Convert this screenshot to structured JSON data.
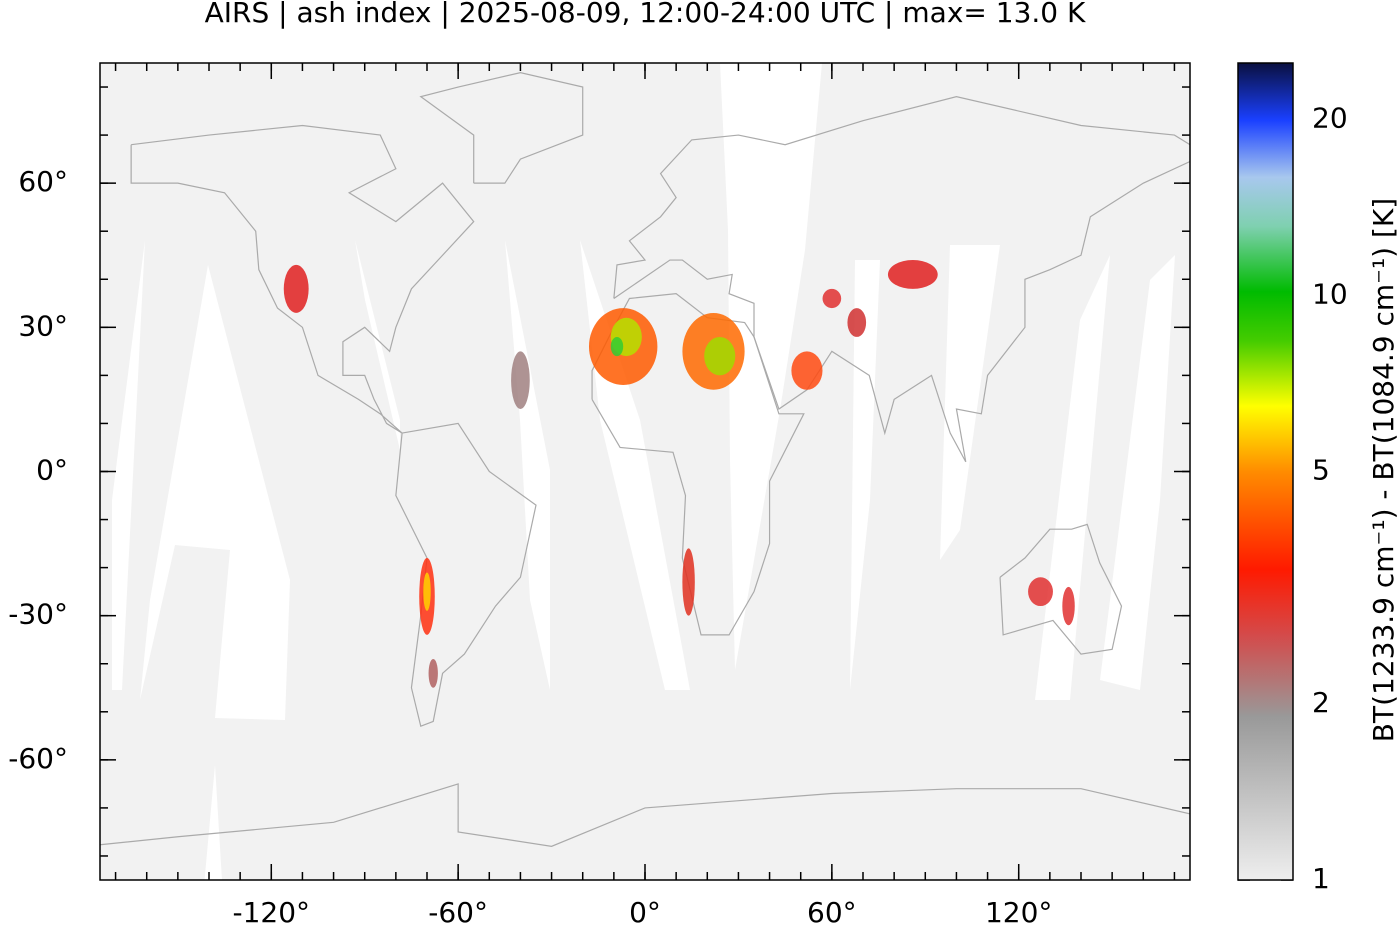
{
  "title": "AIRS | ash index | 2025-08-09, 12:00-24:00 UTC | max= 13.0 K",
  "map": {
    "xlim": [
      -175,
      175
    ],
    "ylim": [
      -85,
      85
    ],
    "xticks": [
      {
        "value": -120,
        "label": "-120°"
      },
      {
        "value": -60,
        "label": "-60°"
      },
      {
        "value": 0,
        "label": "0°"
      },
      {
        "value": 60,
        "label": "60°"
      },
      {
        "value": 120,
        "label": "120°"
      }
    ],
    "yticks": [
      {
        "value": 60,
        "label": "60°"
      },
      {
        "value": 30,
        "label": "30°"
      },
      {
        "value": 0,
        "label": "0°"
      },
      {
        "value": -30,
        "label": "-30°"
      },
      {
        "value": -60,
        "label": "-60°"
      }
    ]
  },
  "colorbar": {
    "label": "BT(1233.9 cm⁻¹) - BT(1084.9 cm⁻¹) [K]",
    "lim": [
      1,
      25
    ],
    "log": true,
    "ticks": [
      1,
      2,
      5,
      10,
      20
    ]
  }
}
